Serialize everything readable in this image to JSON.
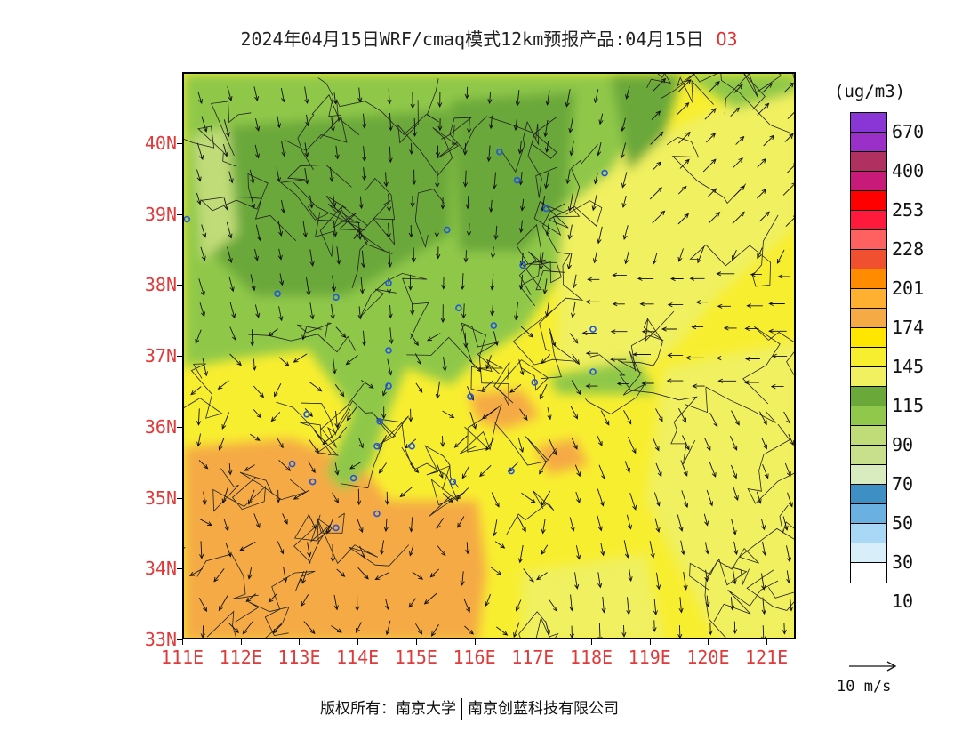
{
  "title": {
    "main": "2024年04月15日WRF/cmaq模式12km预报产品:04月15日",
    "species": "O3"
  },
  "map": {
    "lon_range": [
      111,
      121.5
    ],
    "lat_range": [
      33,
      41
    ],
    "lat_labels": [
      "40N",
      "39N",
      "38N",
      "37N",
      "36N",
      "35N",
      "34N",
      "33N"
    ],
    "lon_labels": [
      "111E",
      "112E",
      "113E",
      "114E",
      "115E",
      "116E",
      "117E",
      "118E",
      "119E",
      "120E",
      "121E"
    ],
    "station_marker_color": "#2255dd",
    "vector_color": "#111111"
  },
  "colorbar": {
    "unit": "(ug/m3)",
    "colors": [
      "#8a36d6",
      "#9b30c8",
      "#b03060",
      "#c81a78",
      "#ff0000",
      "#ff1a3c",
      "#ff6060",
      "#f05030",
      "#ff8c00",
      "#ffb030",
      "#f5aa45",
      "#ffe600",
      "#f8ee30",
      "#f0f060",
      "#6aa83a",
      "#8fc84a",
      "#c0dc78",
      "#c8e08c",
      "#d8ecc0",
      "#3d8fc4",
      "#6ab0e0",
      "#a8d8f5",
      "#d8eef8",
      "#ffffff"
    ],
    "labels": [
      "670",
      "400",
      "253",
      "228",
      "201",
      "174",
      "145",
      "115",
      "90",
      "70",
      "50",
      "30",
      "10"
    ]
  },
  "wind_ref": {
    "label": "10 m/s"
  },
  "footer": {
    "left": "版权所有：南京大学",
    "right": "南京创蓝科技有限公司"
  }
}
